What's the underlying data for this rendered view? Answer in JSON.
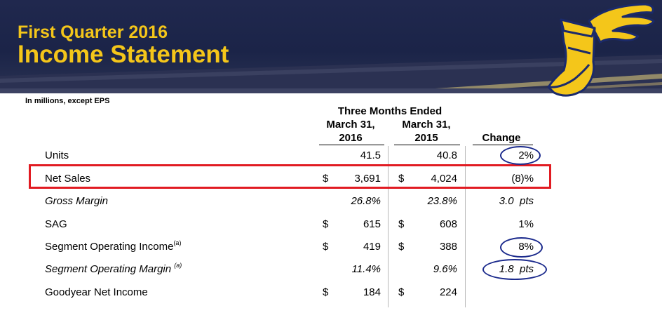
{
  "header": {
    "title_line1": "First Quarter 2016",
    "title_line2": "Income Statement",
    "colors": {
      "title": "#f4c61a",
      "banner": "#1b2448",
      "highlight": "#e11b22",
      "circle": "#1b2a8c"
    }
  },
  "note": "In millions, except EPS",
  "columns": {
    "group_header": "Three Months Ended",
    "col1_line1": "March 31,",
    "col1_line2": "2016",
    "col2_line1": "March 31,",
    "col2_line2": "2015",
    "col3": "Change"
  },
  "rows": [
    {
      "label": "Units",
      "cur1": "",
      "val1": "41.5",
      "cur2": "",
      "val2": "40.8",
      "change": "2%"
    },
    {
      "label": "Net Sales",
      "cur1": "$",
      "val1": "3,691",
      "cur2": "$",
      "val2": "4,024",
      "change": "(8)%"
    },
    {
      "label": "Gross Margin",
      "cur1": "",
      "val1": "26.8%",
      "cur2": "",
      "val2": "23.8%",
      "change": "3.0  pts"
    },
    {
      "label": "SAG",
      "cur1": "$",
      "val1": "615",
      "cur2": "$",
      "val2": "608",
      "change": "1%"
    },
    {
      "label": "Segment Operating Income",
      "sup": "(a)",
      "cur1": "$",
      "val1": "419",
      "cur2": "$",
      "val2": "388",
      "change": "8%"
    },
    {
      "label": "Segment Operating Margin ",
      "sup": "(a)",
      "cur1": "",
      "val1": "11.4%",
      "cur2": "",
      "val2": "9.6%",
      "change": "1.8  pts"
    },
    {
      "label": "Goodyear Net Income",
      "cur1": "$",
      "val1": "184",
      "cur2": "$",
      "val2": "224",
      "change": ""
    }
  ]
}
